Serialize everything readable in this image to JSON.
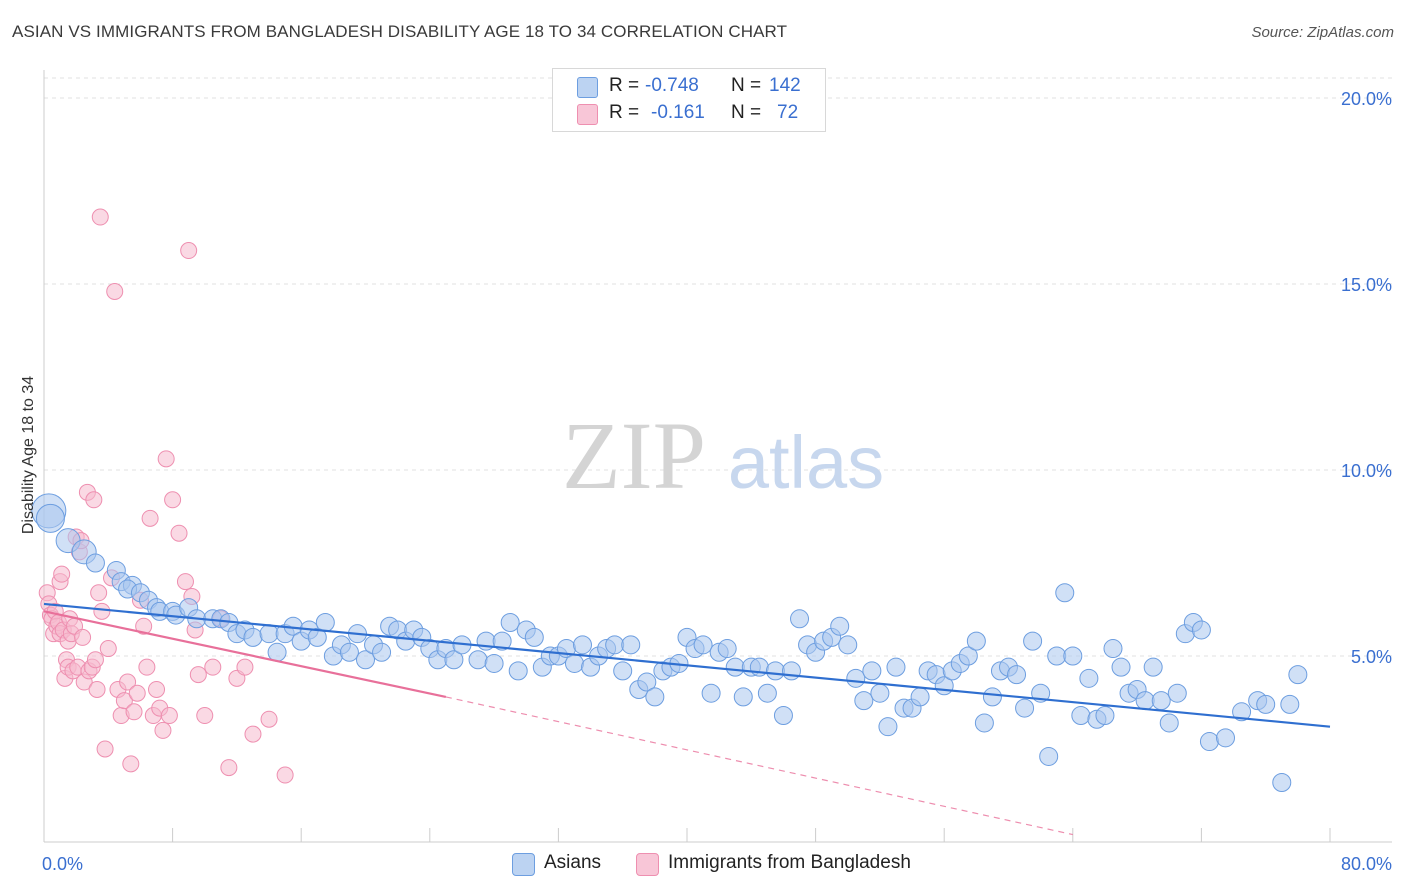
{
  "header": {
    "title": "ASIAN VS IMMIGRANTS FROM BANGLADESH DISABILITY AGE 18 TO 34 CORRELATION CHART",
    "source": "Source: ZipAtlas.com"
  },
  "watermark": {
    "zip": "ZIP",
    "atlas": "atlas"
  },
  "legend_top": {
    "rows": [
      {
        "r_label": "R =",
        "r_value": "-0.748",
        "n_label": "N =",
        "n_value": "142"
      },
      {
        "r_label": "R =",
        "r_value": "-0.161",
        "n_label": "N =",
        "n_value": "72"
      }
    ]
  },
  "legend_bottom": {
    "items": [
      {
        "label": "Asians"
      },
      {
        "label": "Immigrants from Bangladesh"
      }
    ]
  },
  "colors": {
    "asian_fill": "#a9c6ee",
    "asian_stroke": "#6d9ee0",
    "asian_line": "#2f6fd0",
    "bang_fill": "#f6b9cd",
    "bang_stroke": "#ee8fb0",
    "bang_line": "#e8709a",
    "tick_text": "#3a6fd0",
    "grid": "#e2e2e2"
  },
  "chart_data": {
    "type": "scatter",
    "title": "ASIAN VS IMMIGRANTS FROM BANGLADESH DISABILITY AGE 18 TO 34 CORRELATION CHART",
    "xlabel": "",
    "ylabel": "Disability Age 18 to 34",
    "xlim": [
      0,
      80
    ],
    "ylim": [
      0,
      20
    ],
    "x_tick_labels": [
      "0.0%",
      "80.0%"
    ],
    "y_ticks": [
      5,
      10,
      15,
      20
    ],
    "y_tick_labels": [
      "5.0%",
      "10.0%",
      "15.0%",
      "20.0%"
    ],
    "grid": true,
    "legend_position": "top-center",
    "series": [
      {
        "name": "Asians",
        "r": -0.748,
        "n": 142,
        "trend": {
          "x": [
            0,
            80
          ],
          "y": [
            6.4,
            3.1
          ]
        },
        "points": [
          [
            0.3,
            8.9
          ],
          [
            0.4,
            8.7
          ],
          [
            1.5,
            8.1
          ],
          [
            2.5,
            7.8
          ],
          [
            3.2,
            7.5
          ],
          [
            4.5,
            7.3
          ],
          [
            4.8,
            7.0
          ],
          [
            5.5,
            6.9
          ],
          [
            5.2,
            6.8
          ],
          [
            6.0,
            6.7
          ],
          [
            6.5,
            6.5
          ],
          [
            7.0,
            6.3
          ],
          [
            7.2,
            6.2
          ],
          [
            8.0,
            6.2
          ],
          [
            8.2,
            6.1
          ],
          [
            9.0,
            6.3
          ],
          [
            9.5,
            6.0
          ],
          [
            10.5,
            6.0
          ],
          [
            11.0,
            6.0
          ],
          [
            11.5,
            5.9
          ],
          [
            12.0,
            5.6
          ],
          [
            12.5,
            5.7
          ],
          [
            13.0,
            5.5
          ],
          [
            14.0,
            5.6
          ],
          [
            14.5,
            5.1
          ],
          [
            15.0,
            5.6
          ],
          [
            15.5,
            5.8
          ],
          [
            16.0,
            5.4
          ],
          [
            16.5,
            5.7
          ],
          [
            17.0,
            5.5
          ],
          [
            17.5,
            5.9
          ],
          [
            18.0,
            5.0
          ],
          [
            18.5,
            5.3
          ],
          [
            19.0,
            5.1
          ],
          [
            19.5,
            5.6
          ],
          [
            20.0,
            4.9
          ],
          [
            20.5,
            5.3
          ],
          [
            21.0,
            5.1
          ],
          [
            21.5,
            5.8
          ],
          [
            22.0,
            5.7
          ],
          [
            22.5,
            5.4
          ],
          [
            23.0,
            5.7
          ],
          [
            23.5,
            5.5
          ],
          [
            24.0,
            5.2
          ],
          [
            24.5,
            4.9
          ],
          [
            25.0,
            5.2
          ],
          [
            25.5,
            4.9
          ],
          [
            26.0,
            5.3
          ],
          [
            27.0,
            4.9
          ],
          [
            27.5,
            5.4
          ],
          [
            28.0,
            4.8
          ],
          [
            28.5,
            5.4
          ],
          [
            29.0,
            5.9
          ],
          [
            29.5,
            4.6
          ],
          [
            30.0,
            5.7
          ],
          [
            30.5,
            5.5
          ],
          [
            31.0,
            4.7
          ],
          [
            31.5,
            5.0
          ],
          [
            32.0,
            5.0
          ],
          [
            32.5,
            5.2
          ],
          [
            33.0,
            4.8
          ],
          [
            33.5,
            5.3
          ],
          [
            34.0,
            4.7
          ],
          [
            34.5,
            5.0
          ],
          [
            35.0,
            5.2
          ],
          [
            35.5,
            5.3
          ],
          [
            36.0,
            4.6
          ],
          [
            36.5,
            5.3
          ],
          [
            37.0,
            4.1
          ],
          [
            37.5,
            4.3
          ],
          [
            38.0,
            3.9
          ],
          [
            38.5,
            4.6
          ],
          [
            39.0,
            4.7
          ],
          [
            39.5,
            4.8
          ],
          [
            40.0,
            5.5
          ],
          [
            40.5,
            5.2
          ],
          [
            41.0,
            5.3
          ],
          [
            41.5,
            4.0
          ],
          [
            42.0,
            5.1
          ],
          [
            42.5,
            5.2
          ],
          [
            43.0,
            4.7
          ],
          [
            43.5,
            3.9
          ],
          [
            44.0,
            4.7
          ],
          [
            44.5,
            4.7
          ],
          [
            45.0,
            4.0
          ],
          [
            45.5,
            4.6
          ],
          [
            46.0,
            3.4
          ],
          [
            46.5,
            4.6
          ],
          [
            47.0,
            6.0
          ],
          [
            47.5,
            5.3
          ],
          [
            48.0,
            5.1
          ],
          [
            48.5,
            5.4
          ],
          [
            49.0,
            5.5
          ],
          [
            49.5,
            5.8
          ],
          [
            50.0,
            5.3
          ],
          [
            50.5,
            4.4
          ],
          [
            51.0,
            3.8
          ],
          [
            51.5,
            4.6
          ],
          [
            52.0,
            4.0
          ],
          [
            52.5,
            3.1
          ],
          [
            53.0,
            4.7
          ],
          [
            53.5,
            3.6
          ],
          [
            54.0,
            3.6
          ],
          [
            54.5,
            3.9
          ],
          [
            55.0,
            4.6
          ],
          [
            55.5,
            4.5
          ],
          [
            56.0,
            4.2
          ],
          [
            56.5,
            4.6
          ],
          [
            57.0,
            4.8
          ],
          [
            57.5,
            5.0
          ],
          [
            58.0,
            5.4
          ],
          [
            58.5,
            3.2
          ],
          [
            59.0,
            3.9
          ],
          [
            59.5,
            4.6
          ],
          [
            60.0,
            4.7
          ],
          [
            60.5,
            4.5
          ],
          [
            61.0,
            3.6
          ],
          [
            61.5,
            5.4
          ],
          [
            62.0,
            4.0
          ],
          [
            62.5,
            2.3
          ],
          [
            63.0,
            5.0
          ],
          [
            63.5,
            6.7
          ],
          [
            64.0,
            5.0
          ],
          [
            64.5,
            3.4
          ],
          [
            65.0,
            4.4
          ],
          [
            65.5,
            3.3
          ],
          [
            66.0,
            3.4
          ],
          [
            66.5,
            5.2
          ],
          [
            67.0,
            4.7
          ],
          [
            67.5,
            4.0
          ],
          [
            68.0,
            4.1
          ],
          [
            68.5,
            3.8
          ],
          [
            69.0,
            4.7
          ],
          [
            69.5,
            3.8
          ],
          [
            70.0,
            3.2
          ],
          [
            70.5,
            4.0
          ],
          [
            71.0,
            5.6
          ],
          [
            71.5,
            5.9
          ],
          [
            72.0,
            5.7
          ],
          [
            72.5,
            2.7
          ],
          [
            73.5,
            2.8
          ],
          [
            74.5,
            3.5
          ],
          [
            75.5,
            3.8
          ],
          [
            76.0,
            3.7
          ],
          [
            77.5,
            3.7
          ],
          [
            77.0,
            1.6
          ],
          [
            78.0,
            4.5
          ]
        ]
      },
      {
        "name": "Immigrants from Bangladesh",
        "r": -0.161,
        "n": 72,
        "trend": {
          "x": [
            0,
            25
          ],
          "y": [
            6.2,
            3.9
          ]
        },
        "trend_dashed": {
          "x": [
            25,
            64
          ],
          "y": [
            3.9,
            0.2
          ]
        },
        "points": [
          [
            0.2,
            6.7
          ],
          [
            0.3,
            6.4
          ],
          [
            0.4,
            6.1
          ],
          [
            0.5,
            6.0
          ],
          [
            0.6,
            5.6
          ],
          [
            0.7,
            6.2
          ],
          [
            0.8,
            5.8
          ],
          [
            0.9,
            5.9
          ],
          [
            1.0,
            7.0
          ],
          [
            1.0,
            5.6
          ],
          [
            1.1,
            7.2
          ],
          [
            1.2,
            5.7
          ],
          [
            1.3,
            4.4
          ],
          [
            1.4,
            4.9
          ],
          [
            1.5,
            4.7
          ],
          [
            1.5,
            5.4
          ],
          [
            1.6,
            6.0
          ],
          [
            1.7,
            5.6
          ],
          [
            1.8,
            4.6
          ],
          [
            1.9,
            5.8
          ],
          [
            2.0,
            8.2
          ],
          [
            2.1,
            4.7
          ],
          [
            2.2,
            7.8
          ],
          [
            2.3,
            8.1
          ],
          [
            2.4,
            5.5
          ],
          [
            2.5,
            4.3
          ],
          [
            2.7,
            9.4
          ],
          [
            2.8,
            4.6
          ],
          [
            3.0,
            4.7
          ],
          [
            3.1,
            9.2
          ],
          [
            3.2,
            4.9
          ],
          [
            3.3,
            4.1
          ],
          [
            3.4,
            6.7
          ],
          [
            3.5,
            16.8
          ],
          [
            3.6,
            6.2
          ],
          [
            3.8,
            2.5
          ],
          [
            4.0,
            5.2
          ],
          [
            4.2,
            7.1
          ],
          [
            4.4,
            14.8
          ],
          [
            4.6,
            4.1
          ],
          [
            4.8,
            3.4
          ],
          [
            5.0,
            3.8
          ],
          [
            5.2,
            4.3
          ],
          [
            5.4,
            2.1
          ],
          [
            5.6,
            3.5
          ],
          [
            5.8,
            4.0
          ],
          [
            6.0,
            6.5
          ],
          [
            6.2,
            5.8
          ],
          [
            6.4,
            4.7
          ],
          [
            6.6,
            8.7
          ],
          [
            6.8,
            3.4
          ],
          [
            7.0,
            4.1
          ],
          [
            7.2,
            3.6
          ],
          [
            7.4,
            3.0
          ],
          [
            7.6,
            10.3
          ],
          [
            7.8,
            3.4
          ],
          [
            8.0,
            9.2
          ],
          [
            8.4,
            8.3
          ],
          [
            8.8,
            7.0
          ],
          [
            9.0,
            15.9
          ],
          [
            9.2,
            6.6
          ],
          [
            9.4,
            5.7
          ],
          [
            9.6,
            4.5
          ],
          [
            10.0,
            3.4
          ],
          [
            10.5,
            4.7
          ],
          [
            11.0,
            6.0
          ],
          [
            11.5,
            2.0
          ],
          [
            12.0,
            4.4
          ],
          [
            12.5,
            4.7
          ],
          [
            13.0,
            2.9
          ],
          [
            14.0,
            3.3
          ],
          [
            15.0,
            1.8
          ]
        ]
      }
    ]
  }
}
